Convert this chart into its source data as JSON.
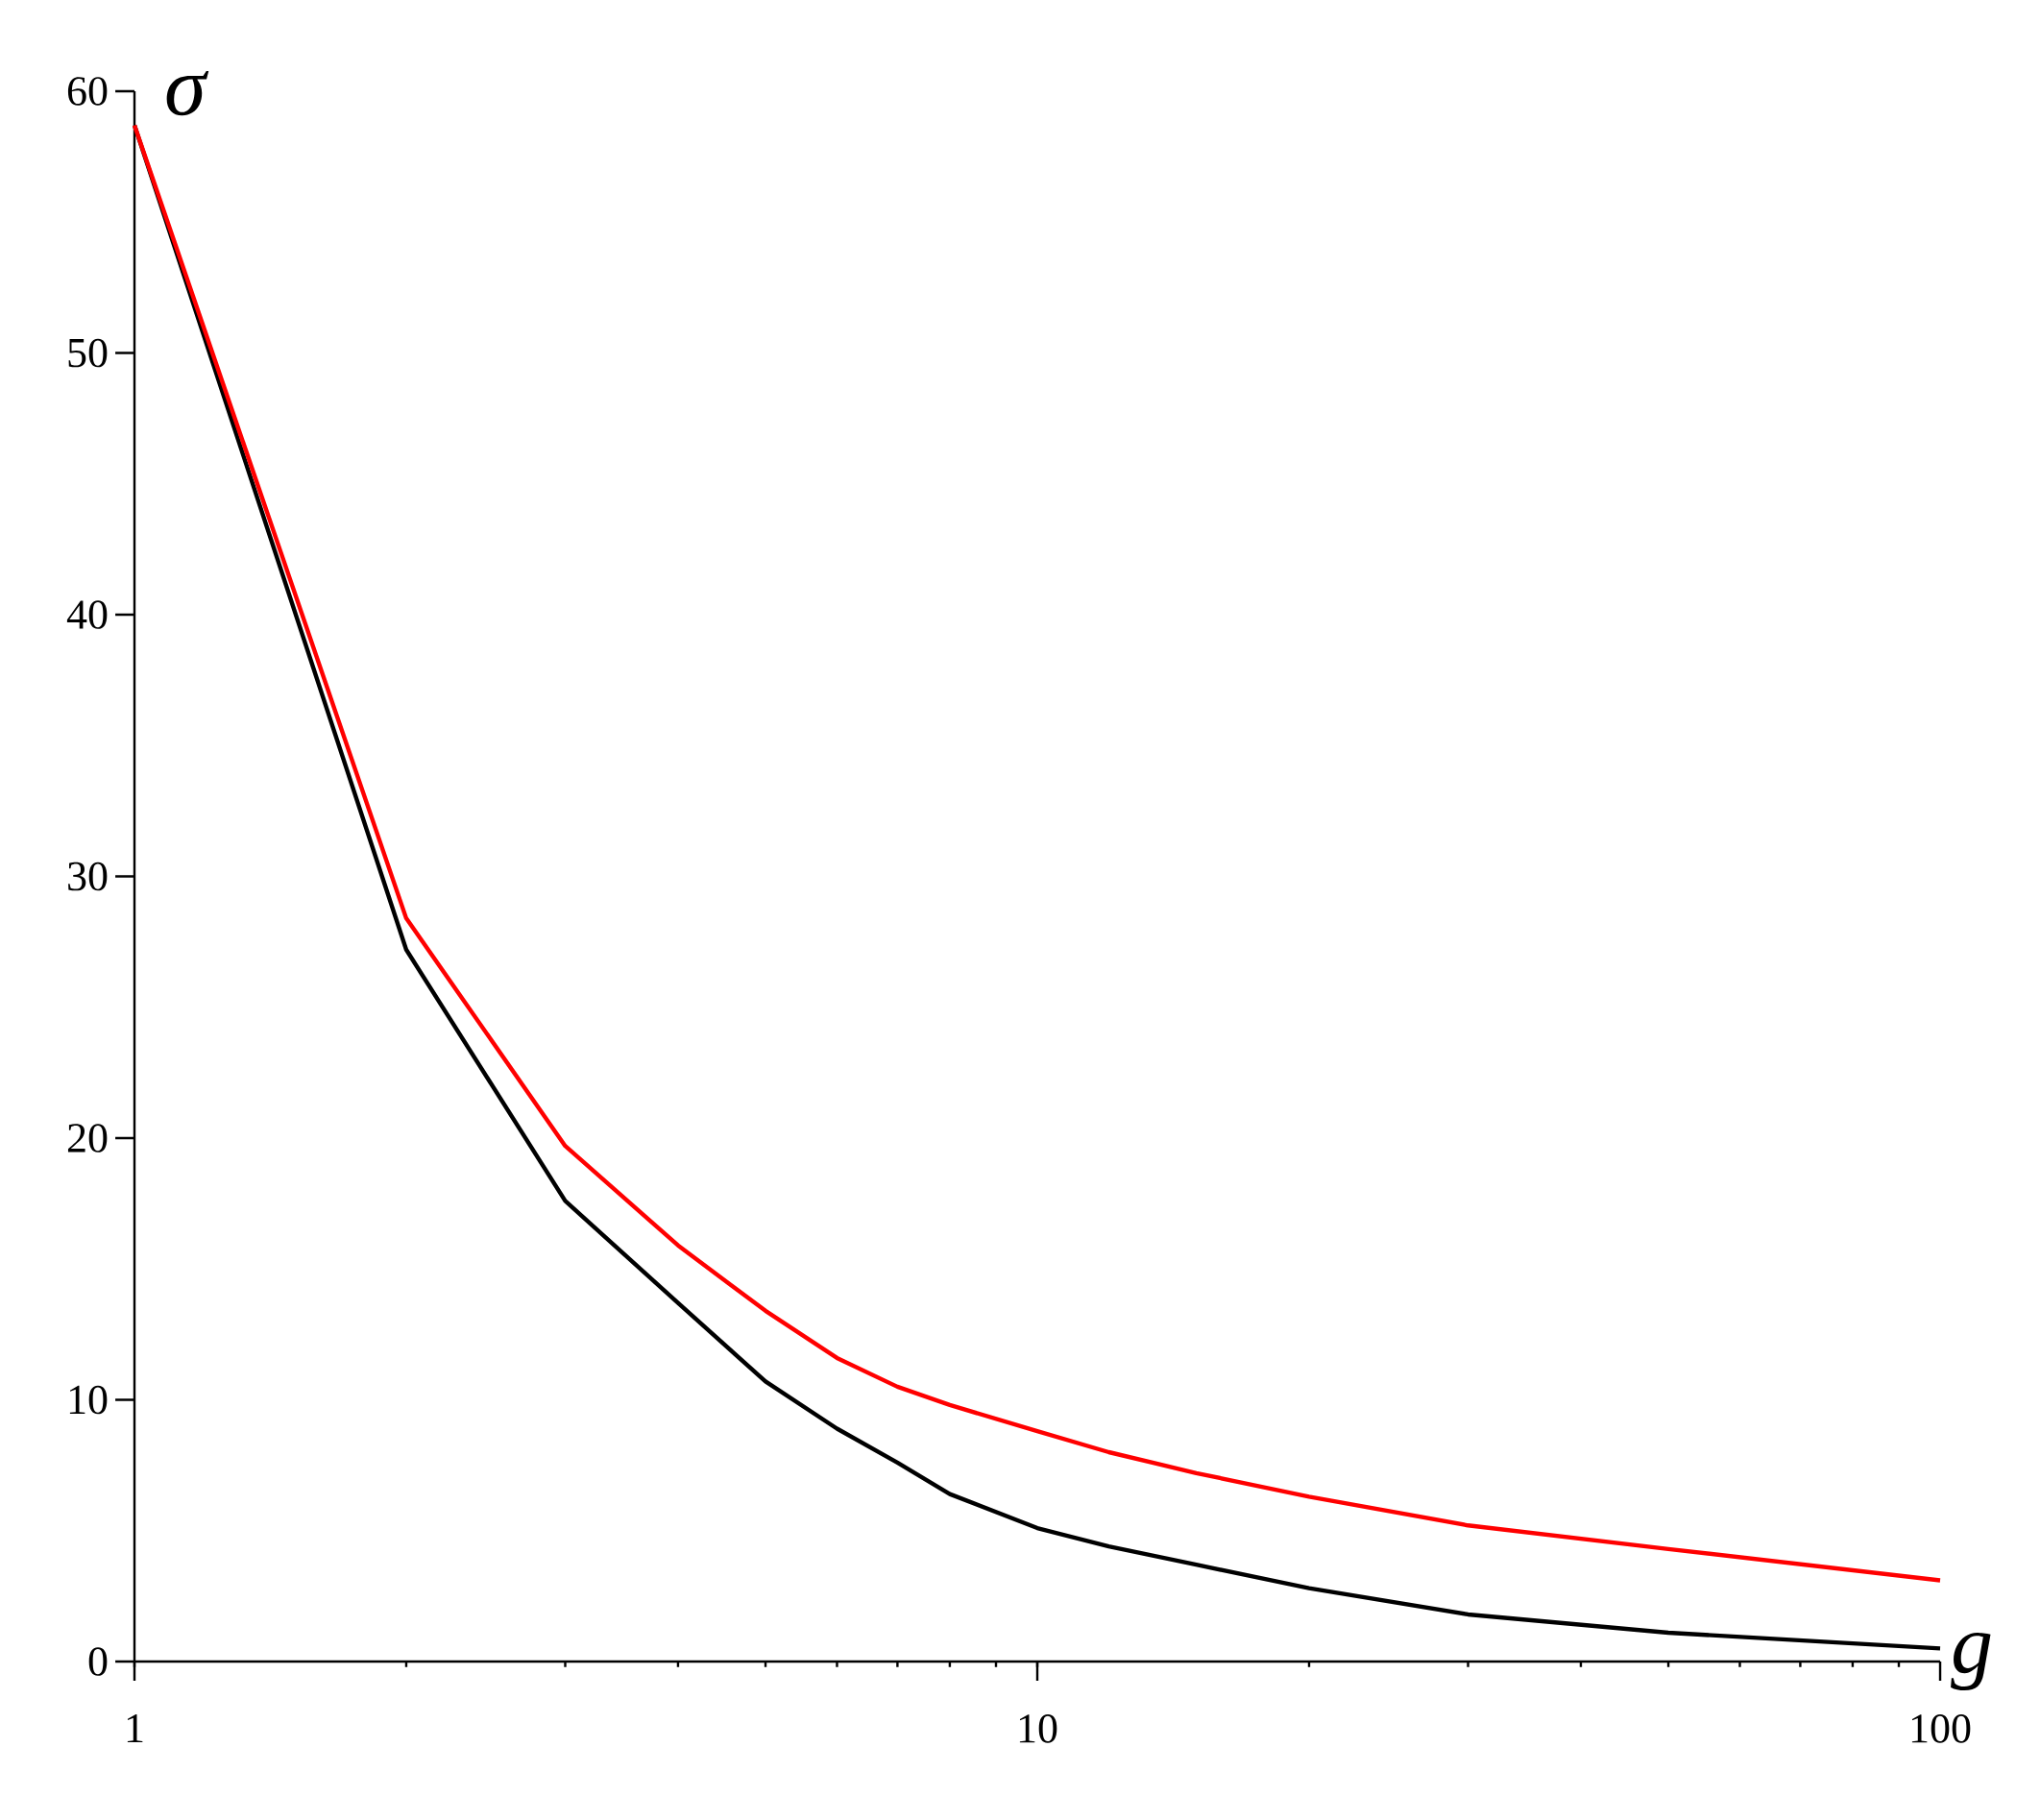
{
  "chart_data": {
    "type": "line",
    "xlabel": "g",
    "ylabel": "σ",
    "log": "x",
    "grid": false,
    "xlim": [
      1,
      100
    ],
    "ylim": [
      0,
      60
    ],
    "xticks": [
      1,
      10,
      100
    ],
    "yticks": [
      0,
      10,
      20,
      30,
      40,
      50,
      60
    ],
    "series": [
      {
        "color": "#000000",
        "x": [
          1,
          2,
          3,
          4,
          5,
          6,
          7,
          8,
          10,
          12,
          15,
          20,
          30,
          50,
          100
        ],
        "values": [
          58.7,
          27.2,
          17.6,
          13.7,
          10.7,
          8.9,
          7.6,
          6.4,
          5.1,
          4.4,
          3.7,
          2.8,
          1.8,
          1.1,
          0.5
        ]
      },
      {
        "color": "#ff0000",
        "x": [
          1,
          2,
          3,
          4,
          5,
          6,
          7,
          8,
          10,
          12,
          15,
          20,
          30,
          50,
          100
        ],
        "values": [
          58.7,
          28.4,
          19.7,
          15.9,
          13.4,
          11.6,
          10.5,
          9.8,
          8.8,
          8.0,
          7.2,
          6.3,
          5.2,
          4.3,
          3.1
        ]
      }
    ]
  }
}
